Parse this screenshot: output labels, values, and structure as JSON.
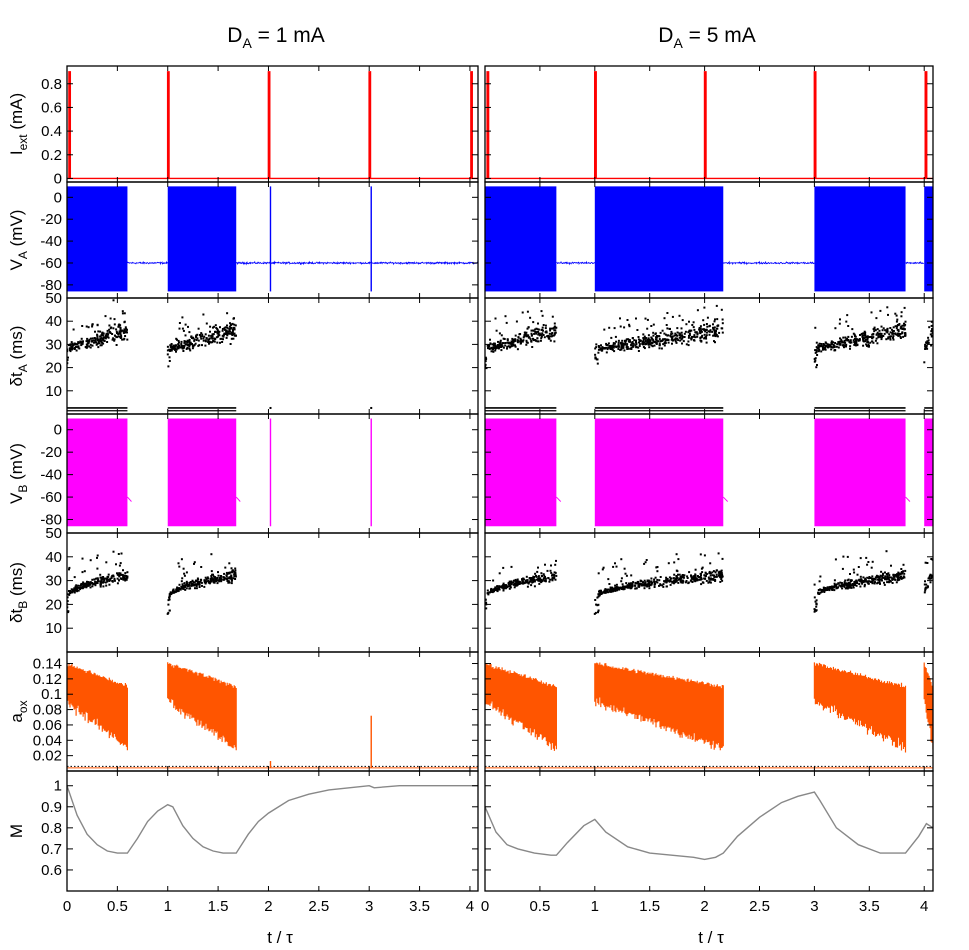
{
  "figure": {
    "column_titles": [
      {
        "main": "D",
        "sub": "A",
        "rest": " = 1 mA"
      },
      {
        "main": "D",
        "sub": "A",
        "rest": " = 5 mA"
      }
    ],
    "xlabel": "t / τ",
    "colors": {
      "iext": "#ff0000",
      "va": "#0000ff",
      "vb": "#ff00ff",
      "aox": "#ff5500",
      "m": "#888888",
      "dots": "#000000",
      "frame": "#000000"
    }
  },
  "chart_data": {
    "type": "line",
    "x": {
      "range": [
        0,
        4.08
      ],
      "ticks": [
        0,
        0.5,
        1,
        1.5,
        2,
        2.5,
        3,
        3.5,
        4
      ],
      "tick_labels": [
        "0",
        "0.5",
        "1",
        "1.5",
        "2",
        "2.5",
        "3",
        "3.5",
        "4"
      ]
    },
    "panels": [
      {
        "id": "iext",
        "ylabel": {
          "main": "I",
          "sub": "ext",
          "rest": " (mA)"
        },
        "ylim": [
          -0.03,
          0.95
        ],
        "yticks": [
          0,
          0.2,
          0.4,
          0.6,
          0.8
        ],
        "ytick_labels": [
          "0",
          "0.2",
          "0.4",
          "0.6",
          "0.8"
        ]
      },
      {
        "id": "va",
        "ylabel": {
          "main": "V",
          "sub": "A",
          "rest": " (mV)"
        },
        "ylim": [
          -92,
          14
        ],
        "yticks": [
          -80,
          -60,
          -40,
          -20,
          0
        ],
        "ytick_labels": [
          "-80",
          "-60",
          "-40",
          "-20",
          "0"
        ]
      },
      {
        "id": "dta",
        "ylabel": {
          "main": "δt",
          "sub": "A",
          "rest": " (ms)"
        },
        "ylim": [
          0,
          50
        ],
        "yticks": [
          10,
          20,
          30,
          40,
          50
        ],
        "ytick_labels": [
          "10",
          "20",
          "30",
          "40",
          "50"
        ]
      },
      {
        "id": "vb",
        "ylabel": {
          "main": "V",
          "sub": "B",
          "rest": " (mV)"
        },
        "ylim": [
          -92,
          14
        ],
        "yticks": [
          -80,
          -60,
          -40,
          -20,
          0
        ],
        "ytick_labels": [
          "-80",
          "-60",
          "-40",
          "-20",
          "0"
        ]
      },
      {
        "id": "dtb",
        "ylabel": {
          "main": "δt",
          "sub": "B",
          "rest": " (ms)"
        },
        "ylim": [
          0,
          50
        ],
        "yticks": [
          10,
          20,
          30,
          40,
          50
        ],
        "ytick_labels": [
          "10",
          "20",
          "30",
          "40",
          "50"
        ]
      },
      {
        "id": "aox",
        "ylabel": {
          "main": "a",
          "sub": "ox",
          "rest": ""
        },
        "ylim": [
          0,
          0.155
        ],
        "yticks": [
          0.02,
          0.04,
          0.06,
          0.08,
          0.1,
          0.12,
          0.14
        ],
        "ytick_labels": [
          "0.02",
          "0.04",
          "0.06",
          "0.08",
          "0.1",
          "0.12",
          "0.14"
        ],
        "threshold": 0.006
      },
      {
        "id": "m",
        "ylabel": {
          "main": "M",
          "sub": "",
          "rest": ""
        },
        "ylim": [
          0.5,
          1.07
        ],
        "yticks": [
          0.6,
          0.7,
          0.8,
          0.9,
          1
        ],
        "ytick_labels": [
          "0.6",
          "0.7",
          "0.8",
          "0.9",
          "1"
        ]
      }
    ],
    "columns": [
      {
        "name": "D_A = 1 mA",
        "pulses": [
          0.02,
          1.0,
          2.0,
          3.0,
          4.01
        ],
        "bursts_a": [
          [
            0,
            0.6
          ],
          [
            1.0,
            1.68
          ]
        ],
        "bursts_b": [
          [
            0,
            0.6
          ],
          [
            1.0,
            1.68
          ]
        ],
        "spikes_a": [
          2.02,
          3.02
        ],
        "spikes_b": [
          2.02,
          3.02
        ],
        "m": [
          [
            0,
            1.0
          ],
          [
            0.1,
            0.86
          ],
          [
            0.2,
            0.77
          ],
          [
            0.3,
            0.72
          ],
          [
            0.4,
            0.69
          ],
          [
            0.5,
            0.68
          ],
          [
            0.6,
            0.68
          ],
          [
            0.7,
            0.75
          ],
          [
            0.8,
            0.83
          ],
          [
            0.9,
            0.88
          ],
          [
            1.0,
            0.91
          ],
          [
            1.05,
            0.9
          ],
          [
            1.15,
            0.81
          ],
          [
            1.25,
            0.75
          ],
          [
            1.35,
            0.71
          ],
          [
            1.45,
            0.69
          ],
          [
            1.55,
            0.68
          ],
          [
            1.68,
            0.68
          ],
          [
            1.8,
            0.77
          ],
          [
            1.9,
            0.83
          ],
          [
            2.0,
            0.87
          ],
          [
            2.2,
            0.93
          ],
          [
            2.4,
            0.96
          ],
          [
            2.6,
            0.98
          ],
          [
            2.8,
            0.99
          ],
          [
            3.0,
            1.0
          ],
          [
            3.05,
            0.99
          ],
          [
            3.3,
            1.0
          ],
          [
            3.6,
            1.0
          ],
          [
            4.08,
            1.0
          ]
        ]
      },
      {
        "name": "D_A = 5 mA",
        "pulses": [
          0.02,
          1.0,
          2.0,
          3.0,
          4.01
        ],
        "bursts_a": [
          [
            0,
            0.65
          ],
          [
            1.0,
            2.17
          ],
          [
            3.0,
            3.83
          ],
          [
            4.0,
            4.08
          ]
        ],
        "bursts_b": [
          [
            0,
            0.65
          ],
          [
            1.0,
            2.17
          ],
          [
            3.0,
            3.83
          ],
          [
            4.0,
            4.08
          ]
        ],
        "spikes_a": [],
        "spikes_b": [],
        "m": [
          [
            0,
            0.9
          ],
          [
            0.1,
            0.78
          ],
          [
            0.2,
            0.72
          ],
          [
            0.3,
            0.7
          ],
          [
            0.45,
            0.68
          ],
          [
            0.6,
            0.67
          ],
          [
            0.65,
            0.67
          ],
          [
            0.75,
            0.73
          ],
          [
            0.9,
            0.81
          ],
          [
            1.0,
            0.84
          ],
          [
            1.1,
            0.78
          ],
          [
            1.3,
            0.71
          ],
          [
            1.5,
            0.68
          ],
          [
            1.7,
            0.67
          ],
          [
            1.9,
            0.66
          ],
          [
            2.0,
            0.65
          ],
          [
            2.1,
            0.66
          ],
          [
            2.17,
            0.68
          ],
          [
            2.3,
            0.76
          ],
          [
            2.5,
            0.85
          ],
          [
            2.7,
            0.92
          ],
          [
            2.85,
            0.95
          ],
          [
            3.0,
            0.97
          ],
          [
            3.05,
            0.93
          ],
          [
            3.2,
            0.8
          ],
          [
            3.4,
            0.72
          ],
          [
            3.6,
            0.68
          ],
          [
            3.83,
            0.68
          ],
          [
            3.95,
            0.76
          ],
          [
            4.02,
            0.82
          ],
          [
            4.08,
            0.8
          ]
        ]
      }
    ]
  }
}
